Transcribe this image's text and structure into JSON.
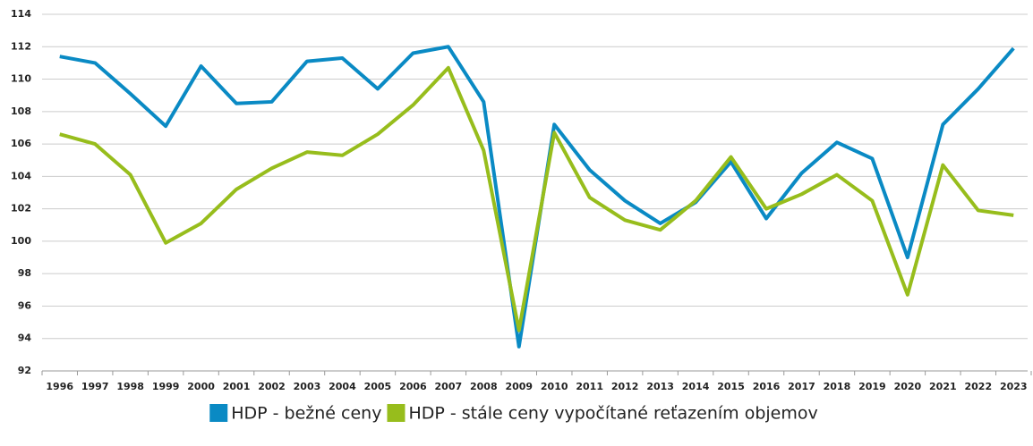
{
  "chart_data": {
    "type": "line",
    "categories": [
      "1996",
      "1997",
      "1998",
      "1999",
      "2000",
      "2001",
      "2002",
      "2003",
      "2004",
      "2005",
      "2006",
      "2007",
      "2008",
      "2009",
      "2010",
      "2011",
      "2012",
      "2013",
      "2014",
      "2015",
      "2016",
      "2017",
      "2018",
      "2019",
      "2020",
      "2021",
      "2022",
      "2023"
    ],
    "series": [
      {
        "name": "HDP - bežné ceny",
        "color": "#0a8ac4",
        "values": [
          111.4,
          111.0,
          109.1,
          107.1,
          110.8,
          108.5,
          108.6,
          111.1,
          111.3,
          109.4,
          111.6,
          112.0,
          108.6,
          93.5,
          107.2,
          104.4,
          102.5,
          101.1,
          102.4,
          104.9,
          101.4,
          104.2,
          106.1,
          105.1,
          99.0,
          107.2,
          109.4,
          111.9
        ]
      },
      {
        "name": "HDP - stále ceny vypočítané reťazením objemov",
        "color": "#97bd1c",
        "values": [
          106.6,
          106.0,
          104.1,
          99.9,
          101.1,
          103.2,
          104.5,
          105.5,
          105.3,
          106.6,
          108.4,
          110.7,
          105.6,
          94.5,
          106.7,
          102.7,
          101.3,
          100.7,
          102.5,
          105.2,
          102.0,
          102.9,
          104.1,
          102.5,
          96.7,
          104.7,
          101.9,
          101.6
        ]
      }
    ],
    "ylim": [
      92,
      114
    ],
    "yticks": [
      92,
      94,
      96,
      98,
      100,
      102,
      104,
      106,
      108,
      110,
      112,
      114
    ],
    "grid": true,
    "legend": "bottom"
  }
}
